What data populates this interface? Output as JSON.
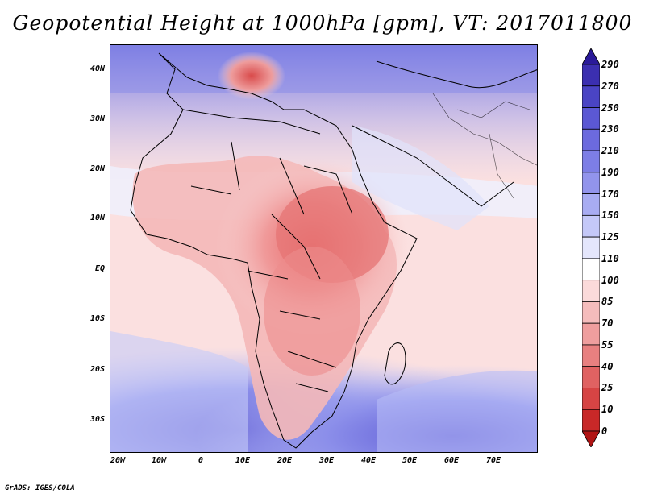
{
  "title": "Geopotential Height at 1000hPa [gpm], VT: 2017011800",
  "footer": "GrADS: IGES/COLA",
  "map": {
    "lat_labels": [
      "40N",
      "30N",
      "20N",
      "10N",
      "EQ",
      "10S",
      "20S",
      "30S"
    ],
    "lon_labels": [
      "20W",
      "10W",
      "0",
      "10E",
      "20E",
      "30E",
      "40E",
      "50E",
      "60E",
      "70E"
    ]
  },
  "colorbar": {
    "labels": [
      "290",
      "270",
      "250",
      "230",
      "210",
      "190",
      "170",
      "150",
      "125",
      "110",
      "100",
      "85",
      "70",
      "55",
      "40",
      "25",
      "10",
      "0"
    ],
    "colors": [
      "#2a1a9a",
      "#3b2fb0",
      "#4a44c4",
      "#5b58d4",
      "#6c6ade",
      "#7d7ee6",
      "#9294ec",
      "#a8acf2",
      "#c4c8f8",
      "#e4e6fc",
      "#ffffff",
      "#fbdada",
      "#f5bcbc",
      "#ef9e9e",
      "#e88080",
      "#e06262",
      "#d64444",
      "#c82828",
      "#b01414"
    ]
  }
}
